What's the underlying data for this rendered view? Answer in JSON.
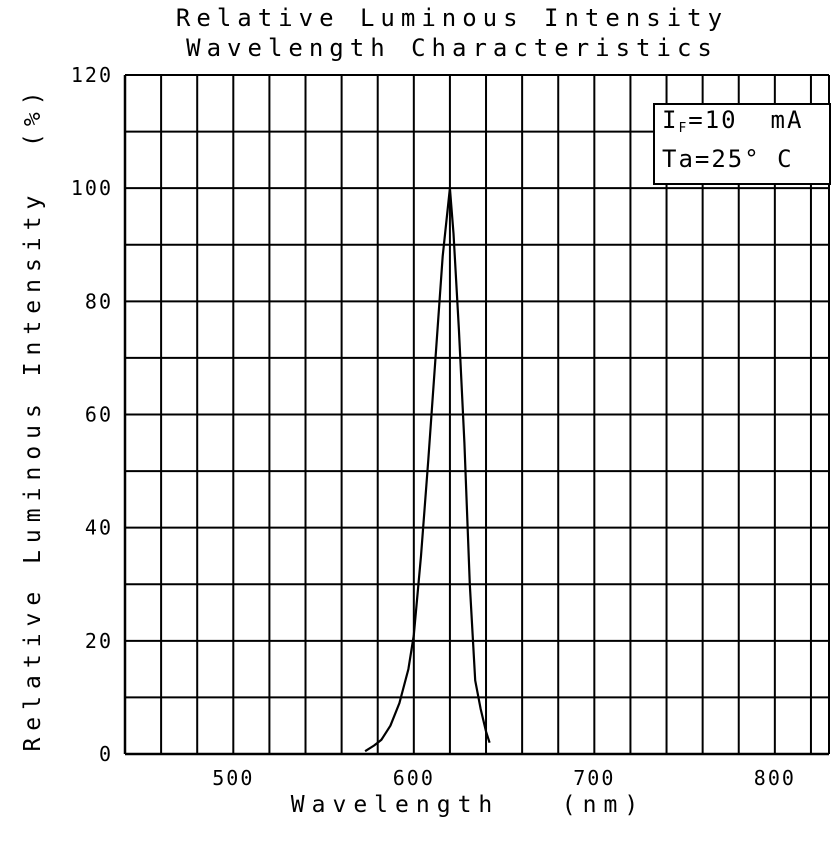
{
  "chart_data": {
    "type": "line",
    "title": [
      "Relative Luminous Intensity",
      "Wavelength Characteristics"
    ],
    "xlabel": "Wavelength   (nm)",
    "ylabel": "Relative Luminous Intensity  (%)",
    "xlim": [
      440,
      830
    ],
    "ylim": [
      0,
      120
    ],
    "x_ticks": [
      500,
      600,
      700,
      800
    ],
    "y_ticks": [
      0,
      20,
      40,
      60,
      80,
      100,
      120
    ],
    "x_grid_step": 20,
    "y_grid_step": 10,
    "grid": true,
    "annotation": {
      "line1": "I",
      "line1_sub": "F",
      "line1_rest": "=10  mA",
      "line2": "Ta=25° C"
    },
    "series": [
      {
        "x": [
          573,
          578,
          582,
          587,
          592,
          597,
          600,
          604,
          608,
          612,
          616,
          619,
          620,
          622,
          625,
          628,
          631,
          634,
          637,
          640,
          642
        ],
        "y": [
          0.5,
          1.5,
          2.5,
          5,
          9,
          15,
          21,
          35,
          52,
          70,
          88,
          97,
          100,
          92,
          75,
          55,
          30,
          13,
          8,
          4,
          2
        ]
      }
    ]
  }
}
